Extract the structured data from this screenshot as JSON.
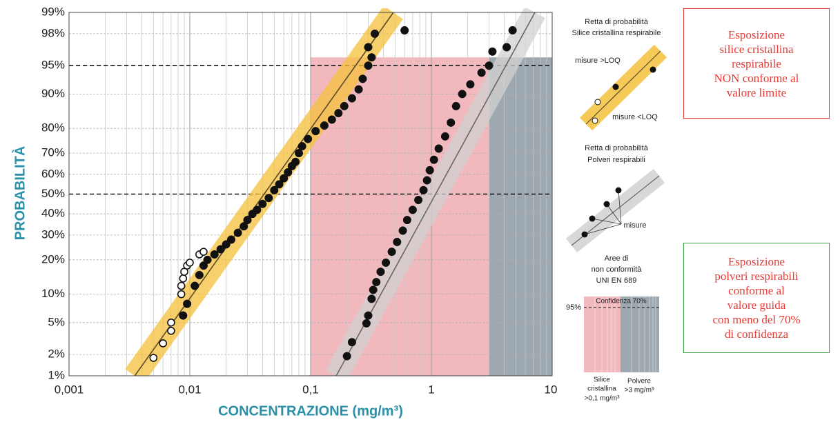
{
  "chart_data": {
    "type": "scatter",
    "y_label": "PROBABILITÀ",
    "x_label": "CONCENTRAZIONE (mg/m³)",
    "x_scale": "log",
    "y_scale": "probability",
    "xlim": [
      0.001,
      10
    ],
    "ylim": [
      1,
      99
    ],
    "xticks": [
      {
        "value": 0.001,
        "label": "0,001"
      },
      {
        "value": 0.01,
        "label": "0,01"
      },
      {
        "value": 0.1,
        "label": "0,1"
      },
      1,
      10
    ],
    "x_minor_ticks": [
      0.002,
      0.003,
      0.004,
      0.005,
      0.006,
      0.007,
      0.008,
      0.009,
      0.02,
      0.03,
      0.04,
      0.05,
      0.06,
      0.07,
      0.08,
      0.09,
      0.2,
      0.3,
      0.4,
      0.5,
      0.6,
      0.7,
      0.8,
      0.9,
      2,
      3,
      4,
      5,
      6,
      7,
      8,
      9
    ],
    "yticks": [
      {
        "value": 1,
        "label": "1%"
      },
      {
        "value": 2,
        "label": "2%"
      },
      {
        "value": 5,
        "label": "5%"
      },
      {
        "value": 10,
        "label": "10%"
      },
      {
        "value": 20,
        "label": "20%"
      },
      {
        "value": 30,
        "label": "30%"
      },
      {
        "value": 40,
        "label": "40%"
      },
      {
        "value": 50,
        "label": "50%"
      },
      {
        "value": 60,
        "label": "60%"
      },
      {
        "value": 70,
        "label": "70%"
      },
      {
        "value": 80,
        "label": "80%"
      },
      {
        "value": 90,
        "label": "90%"
      },
      {
        "value": 95,
        "label": "95%"
      },
      {
        "value": 98,
        "label": "98%"
      },
      {
        "value": 99,
        "label": "99%"
      }
    ],
    "grid": true,
    "reference_lines": [
      95,
      50
    ],
    "regions": [
      {
        "x": [
          0.1,
          3
        ],
        "ymax": 96,
        "color": "#f1b9bd"
      },
      {
        "x": [
          3,
          10
        ],
        "ymax": 96,
        "color": "#9ea8b0"
      }
    ],
    "fit_lines": [
      {
        "x": [
          0.0035,
          0.485
        ],
        "y": [
          1,
          99
        ],
        "band_color": "#f5c13c",
        "line_color": "#5b4a2c"
      },
      {
        "x": [
          0.163,
          7.2
        ],
        "y": [
          1,
          99
        ],
        "band_color": "#d2d2d2",
        "line_color": "#666666"
      }
    ],
    "series": [
      {
        "name": "misure >LOQ",
        "color": "#111111",
        "marker": "filled",
        "x": [
          0.0088,
          0.0095,
          0.011,
          0.012,
          0.013,
          0.014,
          0.016,
          0.018,
          0.02,
          0.022,
          0.025,
          0.028,
          0.03,
          0.033,
          0.036,
          0.04,
          0.045,
          0.05,
          0.055,
          0.06,
          0.065,
          0.07,
          0.075,
          0.08,
          0.085,
          0.095,
          0.11,
          0.13,
          0.15,
          0.17,
          0.19,
          0.22,
          0.25,
          0.27,
          0.3,
          0.32,
          0.3,
          0.34,
          0.6
        ],
        "values": [
          6,
          8,
          12,
          15,
          18,
          20,
          22,
          24,
          26,
          28,
          31,
          34,
          37,
          40,
          42,
          45,
          48,
          52,
          55,
          58,
          61,
          64,
          66,
          70,
          73,
          76,
          79,
          81,
          83,
          85,
          87,
          89,
          91,
          93,
          95,
          96,
          97,
          98,
          98.2
        ]
      },
      {
        "name": "misure <LOQ",
        "color": "#111111",
        "marker": "open",
        "x": [
          0.005,
          0.006,
          0.007,
          0.007,
          0.0085,
          0.0085,
          0.0088,
          0.009,
          0.0095,
          0.01,
          0.012,
          0.013
        ],
        "values": [
          1.8,
          2.8,
          4,
          5,
          10,
          12,
          14,
          16,
          18,
          19,
          22,
          23
        ]
      },
      {
        "name": "misure",
        "color": "#111111",
        "marker": "filled",
        "x": [
          0.2,
          0.22,
          0.29,
          0.3,
          0.32,
          0.33,
          0.35,
          0.38,
          0.42,
          0.47,
          0.52,
          0.58,
          0.63,
          0.7,
          0.78,
          0.86,
          0.92,
          0.97,
          1.05,
          1.15,
          1.3,
          1.45,
          1.6,
          1.8,
          2.1,
          2.6,
          3,
          3.2,
          4.2,
          4.7
        ],
        "values": [
          1.9,
          2.9,
          4.9,
          6,
          9,
          11,
          13,
          16,
          19,
          23,
          27,
          32,
          37,
          42,
          47,
          52,
          57,
          62,
          67,
          72,
          77,
          82,
          87,
          90,
          92,
          94,
          95,
          96.6,
          97,
          98.2
        ]
      }
    ]
  },
  "legend_panel": {
    "silica_title": [
      "Retta di probabilità",
      "Silice cristallina respirabile"
    ],
    "dust_title": [
      "Retta di probabilità",
      "Polveri respirabili"
    ],
    "areas_title": [
      "Aree di",
      "non conformità",
      "UNI EN 689"
    ],
    "confidence": "Confidenza 70%",
    "level": "95%",
    "silica_area": [
      "Silice",
      "cristallina",
      ">0,1 mg/m³"
    ],
    "dust_area": [
      "Polvere",
      ">3 mg/m³"
    ]
  },
  "notes": [
    {
      "lines": [
        "Esposizione",
        "silice cristallina",
        "respirabile",
        "NON conforme al",
        "valore limite"
      ]
    },
    {
      "lines": [
        "Esposizione",
        "polveri respirabili",
        "conforme al",
        "valore guida",
        "con meno del 70%",
        "di confidenza"
      ]
    }
  ]
}
